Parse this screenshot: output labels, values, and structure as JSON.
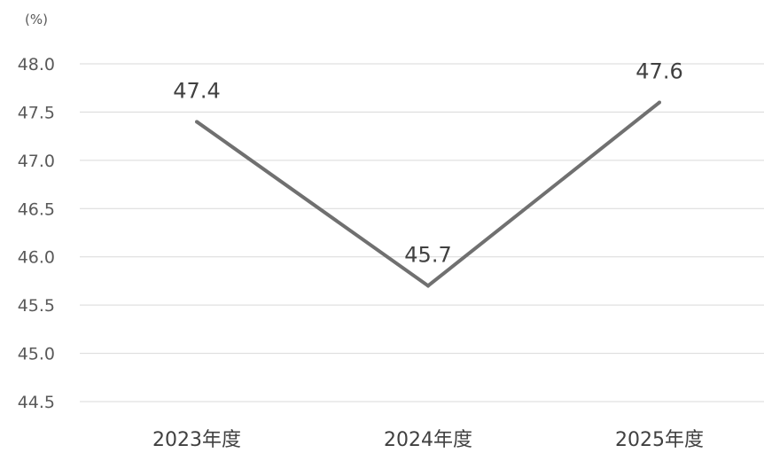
{
  "chart_data": {
    "type": "line",
    "title": "",
    "xlabel": "",
    "ylabel": "(%)",
    "categories": [
      "2023年度",
      "2024年度",
      "2025年度"
    ],
    "series": [
      {
        "values": [
          47.4,
          45.7,
          47.6
        ],
        "color": "#707070"
      }
    ],
    "data_labels": [
      "47.4",
      "45.7",
      "47.6"
    ],
    "ylim": [
      44.5,
      48.0
    ],
    "y_ticks": [
      "48.0",
      "47.5",
      "47.0",
      "46.5",
      "46.0",
      "45.5",
      "45.0",
      "44.5"
    ],
    "grid": true,
    "legend": "none"
  }
}
